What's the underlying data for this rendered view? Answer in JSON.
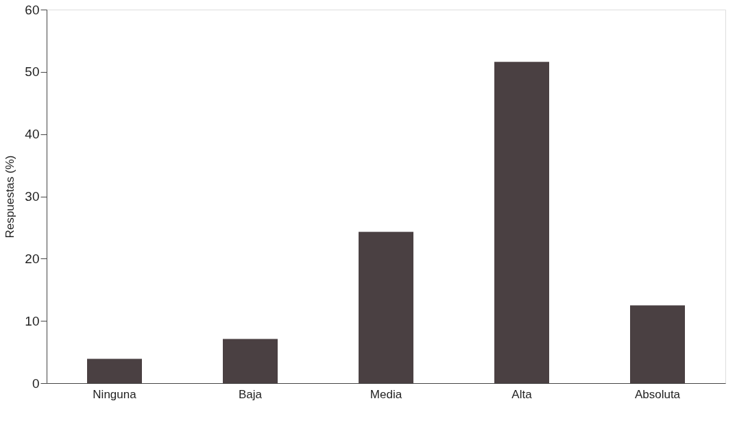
{
  "chart_data": {
    "type": "bar",
    "ylabel": "Respuestas (%)",
    "categories": [
      "Ninguna",
      "Baja",
      "Media",
      "Alta",
      "Absoluta"
    ],
    "values": [
      3.9,
      7.1,
      24.3,
      51.6,
      12.5
    ],
    "color": "#4a4042",
    "ylim": [
      0,
      60
    ],
    "yticks": [
      0,
      10,
      20,
      30,
      40,
      50,
      60
    ],
    "grid": false
  }
}
